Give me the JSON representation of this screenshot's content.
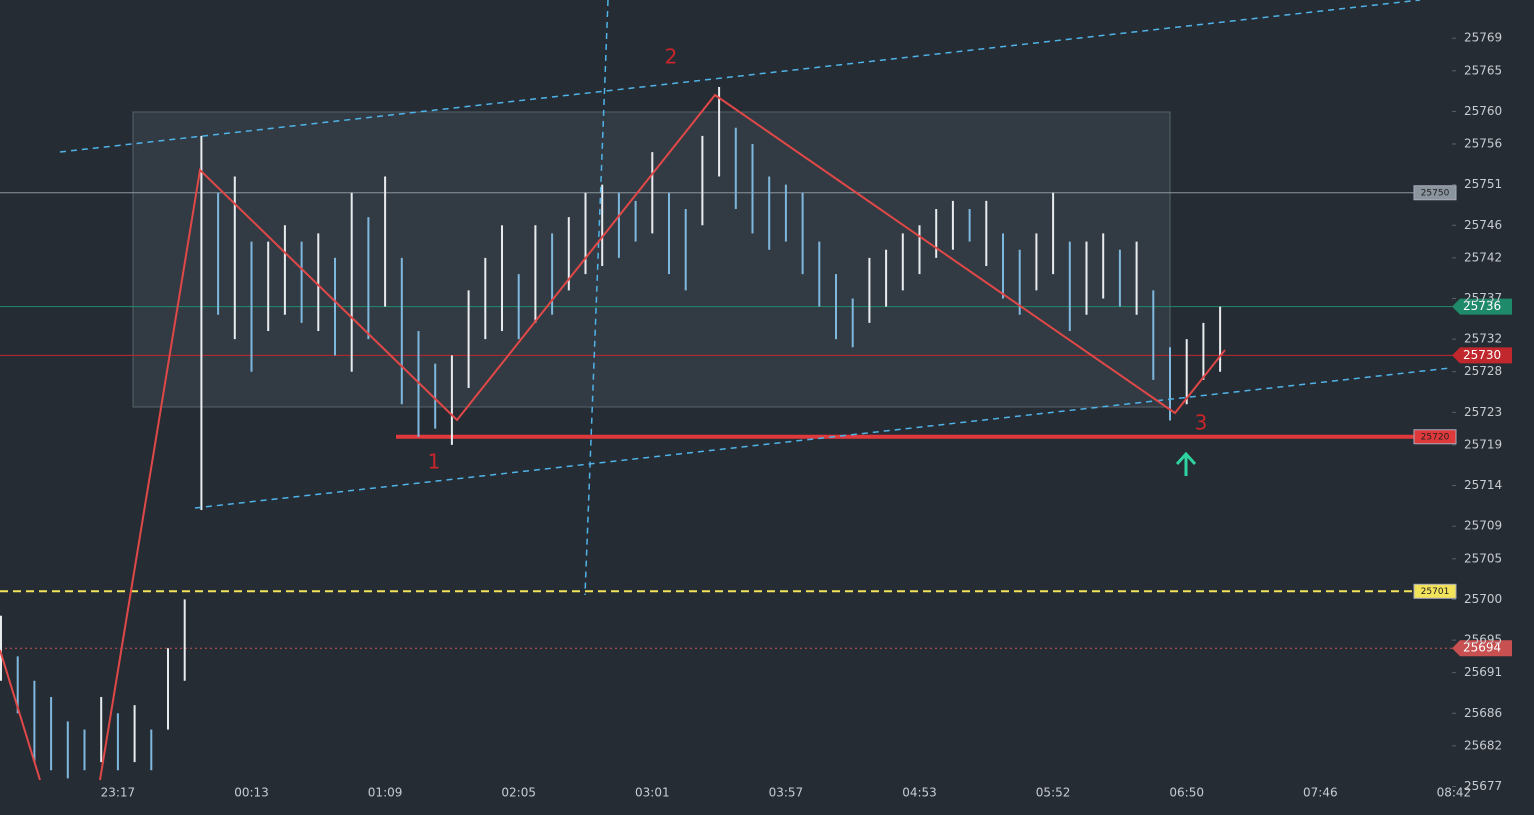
{
  "chart_data": {
    "type": "candles",
    "ylim": [
      25677.8,
      25773.7
    ],
    "yticks": [
      25769,
      25765,
      25760,
      25756,
      25751,
      25746,
      25742,
      25737,
      25732,
      25728,
      25723,
      25719,
      25714,
      25709,
      25705,
      25700,
      25695,
      25691,
      25686,
      25682,
      25677
    ],
    "categories": [
      null,
      null,
      null,
      null,
      null,
      null,
      null,
      "23:17",
      null,
      null,
      null,
      null,
      null,
      null,
      null,
      "00:13",
      null,
      null,
      null,
      null,
      null,
      null,
      null,
      "01:09",
      null,
      null,
      null,
      null,
      null,
      null,
      null,
      "02:05",
      null,
      null,
      null,
      null,
      null,
      null,
      null,
      "03:01",
      null,
      null,
      null,
      null,
      null,
      null,
      null,
      "03:57",
      null,
      null,
      null,
      null,
      null,
      null,
      null,
      "04:53",
      null,
      null,
      null,
      null,
      null,
      null,
      null,
      "05:52",
      null,
      null,
      null,
      null,
      null,
      null,
      null,
      "06:50",
      null,
      null,
      null,
      null,
      null,
      null,
      null,
      "07:46",
      null,
      null,
      null,
      null,
      null,
      null,
      null,
      "08:42"
    ],
    "values": [
      [
        25690,
        25698
      ],
      [
        25686,
        25693
      ],
      [
        25680,
        25690
      ],
      [
        25679,
        25688
      ],
      [
        25678,
        25685
      ],
      [
        25679,
        25684
      ],
      [
        25680,
        25688
      ],
      [
        25679,
        25686
      ],
      [
        25680,
        25687
      ],
      [
        25679,
        25684
      ],
      [
        25684,
        25694
      ],
      [
        25690,
        25700
      ],
      [
        25711,
        25757
      ],
      [
        25735,
        25750
      ],
      [
        25732,
        25752
      ],
      [
        25728,
        25744
      ],
      [
        25733,
        25744
      ],
      [
        25735,
        25746
      ],
      [
        25734,
        25744
      ],
      [
        25733,
        25745
      ],
      [
        25730,
        25742
      ],
      [
        25728,
        25750
      ],
      [
        25732,
        25747
      ],
      [
        25736,
        25752
      ],
      [
        25724,
        25742
      ],
      [
        25720,
        25733
      ],
      [
        25721,
        25729
      ],
      [
        25719,
        25730
      ],
      [
        25726,
        25738
      ],
      [
        25732,
        25742
      ],
      [
        25733,
        25746
      ],
      [
        25732,
        25740
      ],
      [
        25734,
        25746
      ],
      [
        25735,
        25745
      ],
      [
        25738,
        25747
      ],
      [
        25740,
        25750
      ],
      [
        25741,
        25751
      ],
      [
        25742,
        25750
      ],
      [
        25744,
        25749
      ],
      [
        25745,
        25755
      ],
      [
        25740,
        25750
      ],
      [
        25738,
        25748
      ],
      [
        25746,
        25757
      ],
      [
        25752,
        25763
      ],
      [
        25748,
        25758
      ],
      [
        25745,
        25756
      ],
      [
        25743,
        25752
      ],
      [
        25744,
        25751
      ],
      [
        25740,
        25750
      ],
      [
        25736,
        25744
      ],
      [
        25732,
        25740
      ],
      [
        25731,
        25737
      ],
      [
        25734,
        25742
      ],
      [
        25736,
        25743
      ],
      [
        25738,
        25745
      ],
      [
        25740,
        25746
      ],
      [
        25742,
        25748
      ],
      [
        25743,
        25749
      ],
      [
        25744,
        25748
      ],
      [
        25741,
        25749
      ],
      [
        25737,
        25745
      ],
      [
        25735,
        25743
      ],
      [
        25738,
        25745
      ],
      [
        25740,
        25750
      ],
      [
        25733,
        25744
      ],
      [
        25735,
        25744
      ],
      [
        25737,
        25745
      ],
      [
        25736,
        25743
      ],
      [
        25735,
        25744
      ],
      [
        25727,
        25738
      ],
      [
        25722,
        25731
      ],
      [
        25724,
        25732
      ],
      [
        25727,
        25734
      ],
      [
        25728,
        25736
      ],
      null,
      null,
      null,
      null,
      null,
      null,
      null,
      null,
      null,
      null,
      null,
      null,
      null,
      null
    ],
    "levels": [
      {
        "value": 25750,
        "color": "#8a959e",
        "style": "solid",
        "tag": "line",
        "width": 1
      },
      {
        "value": 25736,
        "color": "#1f8a6a",
        "style": "solid",
        "tag": "axis",
        "width": 1
      },
      {
        "value": 25730,
        "color": "#c0282d",
        "style": "solid",
        "tag": "axis",
        "width": 1
      },
      {
        "value": 25720,
        "color": "#e0393b",
        "style": "solid",
        "tag": "line",
        "width": 4
      },
      {
        "value": 25701,
        "color": "#f2e35a",
        "style": "dashed",
        "tag": "line",
        "width": 2
      },
      {
        "value": 25694,
        "color": "#c85050",
        "style": "dotted",
        "tag": "axis",
        "width": 1
      }
    ],
    "annotations": [
      "1",
      "2",
      "3"
    ]
  }
}
